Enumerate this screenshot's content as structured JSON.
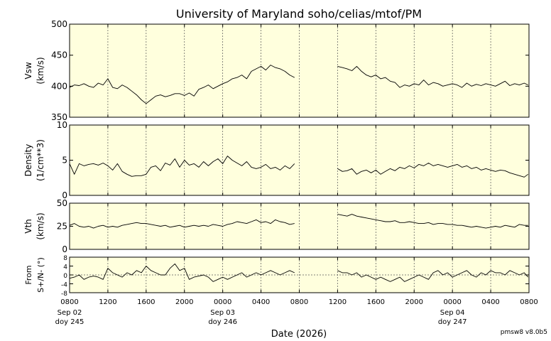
{
  "chart_data": {
    "type": "line",
    "title": "University of Maryland  soho/celias/mtof/PM",
    "xlabel": "Date (2026)",
    "footer": "pmsw8 v8.0b5",
    "x_range_hours": [
      0,
      48
    ],
    "x_ticks": [
      {
        "h": 0,
        "label": "0800",
        "sub": [
          "Sep 02",
          "doy 245"
        ]
      },
      {
        "h": 4,
        "label": "1200"
      },
      {
        "h": 8,
        "label": "1600"
      },
      {
        "h": 12,
        "label": "2000"
      },
      {
        "h": 16,
        "label": "0000",
        "sub": [
          "Sep 03",
          "doy 246"
        ]
      },
      {
        "h": 20,
        "label": "0400"
      },
      {
        "h": 24,
        "label": "0800"
      },
      {
        "h": 28,
        "label": "1200"
      },
      {
        "h": 32,
        "label": "1600"
      },
      {
        "h": 36,
        "label": "2000"
      },
      {
        "h": 40,
        "label": "0000",
        "sub": [
          "Sep 04",
          "doy 247"
        ]
      },
      {
        "h": 44,
        "label": "0400"
      },
      {
        "h": 48,
        "label": "0800"
      }
    ],
    "panels": [
      {
        "ylabel": [
          "Vsw",
          "(km/s)"
        ],
        "ylim": [
          350,
          500
        ],
        "yticks": [
          350,
          400,
          450,
          500
        ],
        "zero_line": false,
        "series": [
          {
            "x": [
              0,
              0.5,
              1,
              1.5,
              2,
              2.5,
              3,
              3.5,
              4,
              4.5,
              5,
              5.5,
              6,
              6.5,
              7,
              7.5,
              8,
              8.5,
              9,
              9.5,
              10,
              10.5,
              11,
              11.5,
              12,
              12.5,
              13,
              13.5,
              14,
              14.5,
              15,
              15.5,
              16,
              16.5,
              17,
              17.5,
              18,
              18.5,
              19,
              19.5,
              20,
              20.5,
              21,
              21.5,
              22,
              22.5,
              23,
              23.5
            ],
            "y": [
              398,
              402,
              401,
              404,
              400,
              398,
              405,
              402,
              412,
              398,
              396,
              402,
              398,
              392,
              386,
              378,
              372,
              378,
              384,
              386,
              383,
              385,
              388,
              388,
              385,
              389,
              384,
              395,
              398,
              402,
              396,
              400,
              404,
              407,
              412,
              414,
              418,
              412,
              424,
              428,
              432,
              426,
              434,
              430,
              428,
              424,
              418,
              414
            ]
          },
          {
            "x": [
              28,
              28.5,
              29,
              29.5,
              30,
              30.5,
              31,
              31.5,
              32,
              32.5,
              33,
              33.5,
              34,
              34.5,
              35,
              35.5,
              36,
              36.5,
              37,
              37.5,
              38,
              38.5,
              39,
              39.5,
              40,
              40.5,
              41,
              41.5,
              42,
              42.5,
              43,
              43.5,
              44,
              44.5,
              45,
              45.5,
              46,
              46.5,
              47,
              47.5,
              47.9
            ],
            "y": [
              432,
              430,
              428,
              425,
              432,
              424,
              418,
              415,
              418,
              412,
              414,
              408,
              406,
              398,
              402,
              400,
              404,
              402,
              410,
              402,
              406,
              404,
              400,
              402,
              404,
              402,
              398,
              405,
              400,
              403,
              401,
              404,
              402,
              400,
              404,
              408,
              401,
              404,
              402,
              405,
              402
            ]
          }
        ]
      },
      {
        "ylabel": [
          "Density",
          "(1/cm**3)"
        ],
        "ylim": [
          0,
          10
        ],
        "yticks": [
          0,
          5,
          10
        ],
        "zero_line": false,
        "series": [
          {
            "x": [
              0,
              0.5,
              1,
              1.5,
              2,
              2.5,
              3,
              3.5,
              4,
              4.5,
              5,
              5.5,
              6,
              6.5,
              7,
              7.5,
              8,
              8.5,
              9,
              9.5,
              10,
              10.5,
              11,
              11.5,
              12,
              12.5,
              13,
              13.5,
              14,
              14.5,
              15,
              15.5,
              16,
              16.5,
              17,
              17.5,
              18,
              18.5,
              19,
              19.5,
              20,
              20.5,
              21,
              21.5,
              22,
              22.5,
              23,
              23.5
            ],
            "y": [
              4.5,
              3.0,
              4.5,
              4.2,
              4.4,
              4.5,
              4.3,
              4.6,
              4.2,
              3.6,
              4.5,
              3.4,
              3.0,
              2.7,
              2.8,
              2.8,
              3.0,
              4.0,
              4.2,
              3.5,
              4.6,
              4.3,
              5.2,
              4.0,
              5.0,
              4.3,
              4.5,
              4.0,
              4.8,
              4.2,
              4.8,
              5.2,
              4.5,
              5.6,
              5.0,
              4.6,
              4.2,
              4.8,
              4.0,
              3.8,
              4.0,
              4.4,
              3.8,
              4.0,
              3.6,
              4.2,
              3.8,
              4.5
            ]
          },
          {
            "x": [
              28,
              28.5,
              29,
              29.5,
              30,
              30.5,
              31,
              31.5,
              32,
              32.5,
              33,
              33.5,
              34,
              34.5,
              35,
              35.5,
              36,
              36.5,
              37,
              37.5,
              38,
              38.5,
              39,
              39.5,
              40,
              40.5,
              41,
              41.5,
              42,
              42.5,
              43,
              43.5,
              44,
              44.5,
              45,
              45.5,
              46,
              46.5,
              47,
              47.5,
              47.9
            ],
            "y": [
              3.8,
              3.4,
              3.5,
              3.8,
              3.0,
              3.4,
              3.6,
              3.2,
              3.6,
              3.0,
              3.4,
              3.8,
              3.5,
              4.0,
              3.8,
              4.2,
              3.9,
              4.4,
              4.2,
              4.6,
              4.2,
              4.4,
              4.2,
              4.0,
              4.2,
              4.4,
              4.0,
              4.2,
              3.8,
              4.0,
              3.6,
              3.8,
              3.6,
              3.4,
              3.6,
              3.5,
              3.2,
              3.0,
              2.8,
              2.6,
              3.0
            ]
          }
        ]
      },
      {
        "ylabel": [
          "Vth",
          "(km/s)"
        ],
        "ylim": [
          0,
          50
        ],
        "yticks": [
          0,
          25,
          50
        ],
        "zero_line": false,
        "series": [
          {
            "x": [
              0,
              0.5,
              1,
              1.5,
              2,
              2.5,
              3,
              3.5,
              4,
              4.5,
              5,
              5.5,
              6,
              6.5,
              7,
              7.5,
              8,
              8.5,
              9,
              9.5,
              10,
              10.5,
              11,
              11.5,
              12,
              12.5,
              13,
              13.5,
              14,
              14.5,
              15,
              15.5,
              16,
              16.5,
              17,
              17.5,
              18,
              18.5,
              19,
              19.5,
              20,
              20.5,
              21,
              21.5,
              22,
              22.5,
              23,
              23.5
            ],
            "y": [
              26,
              28,
              25,
              24,
              25,
              23,
              25,
              26,
              24,
              25,
              24,
              26,
              27,
              28,
              29,
              28,
              28,
              27,
              26,
              25,
              26,
              24,
              25,
              26,
              24,
              25,
              26,
              25,
              26,
              25,
              27,
              26,
              25,
              27,
              28,
              30,
              29,
              28,
              30,
              32,
              29,
              30,
              28,
              32,
              30,
              29,
              27,
              28
            ]
          },
          {
            "x": [
              28,
              28.5,
              29,
              29.5,
              30,
              30.5,
              31,
              31.5,
              32,
              32.5,
              33,
              33.5,
              34,
              34.5,
              35,
              35.5,
              36,
              36.5,
              37,
              37.5,
              38,
              38.5,
              39,
              39.5,
              40,
              40.5,
              41,
              41.5,
              42,
              42.5,
              43,
              43.5,
              44,
              44.5,
              45,
              45.5,
              46,
              46.5,
              47,
              47.5,
              47.9
            ],
            "y": [
              38,
              37,
              36,
              38,
              36,
              35,
              34,
              33,
              32,
              31,
              30,
              30,
              31,
              29,
              29,
              30,
              29,
              28,
              28,
              29,
              27,
              28,
              28,
              27,
              27,
              26,
              26,
              25,
              24,
              25,
              24,
              23,
              24,
              25,
              24,
              26,
              25,
              24,
              27,
              26,
              26
            ]
          }
        ]
      },
      {
        "ylabel": [
          "From",
          "S+/N- (°)"
        ],
        "ylim": [
          -8,
          8
        ],
        "yticks": [
          -8,
          -4,
          0,
          4,
          8
        ],
        "zero_line": true,
        "series": [
          {
            "x": [
              0,
              0.5,
              1,
              1.5,
              2,
              2.5,
              3,
              3.5,
              4,
              4.5,
              5,
              5.5,
              6,
              6.5,
              7,
              7.5,
              8,
              8.5,
              9,
              9.5,
              10,
              10.5,
              11,
              11.5,
              12,
              12.5,
              13,
              13.5,
              14,
              14.5,
              15,
              15.5,
              16,
              16.5,
              17,
              17.5,
              18,
              18.5,
              19,
              19.5,
              20,
              20.5,
              21,
              21.5,
              22,
              22.5,
              23,
              23.5
            ],
            "y": [
              -1.5,
              -1,
              0,
              -2,
              -1,
              -0.5,
              -1,
              -2,
              3,
              1,
              0,
              -1,
              1,
              0,
              2,
              1,
              4,
              2,
              1,
              0,
              0,
              3,
              5,
              2,
              3,
              -2,
              -1,
              -0.5,
              0,
              -1,
              -3,
              -2,
              -1,
              -2,
              -1,
              0,
              1,
              -1,
              0,
              1,
              0,
              1,
              2,
              1,
              0,
              1,
              2,
              1
            ]
          },
          {
            "x": [
              28,
              28.5,
              29,
              29.5,
              30,
              30.5,
              31,
              31.5,
              32,
              32.5,
              33,
              33.5,
              34,
              34.5,
              35,
              35.5,
              36,
              36.5,
              37,
              37.5,
              38,
              38.5,
              39,
              39.5,
              40,
              40.5,
              41,
              41.5,
              42,
              42.5,
              43,
              43.5,
              44,
              44.5,
              45,
              45.5,
              46,
              46.5,
              47,
              47.5,
              47.9
            ],
            "y": [
              2,
              1,
              1,
              0,
              1,
              -1,
              0,
              -1,
              -2,
              -1,
              -2,
              -3,
              -2,
              -1,
              -3,
              -2,
              -1,
              0,
              -1,
              -2,
              1,
              2,
              0,
              1,
              -1,
              0,
              1,
              2,
              0,
              -1,
              1,
              0,
              2,
              1,
              1,
              0,
              2,
              1,
              0,
              1,
              -1
            ]
          }
        ]
      }
    ]
  }
}
